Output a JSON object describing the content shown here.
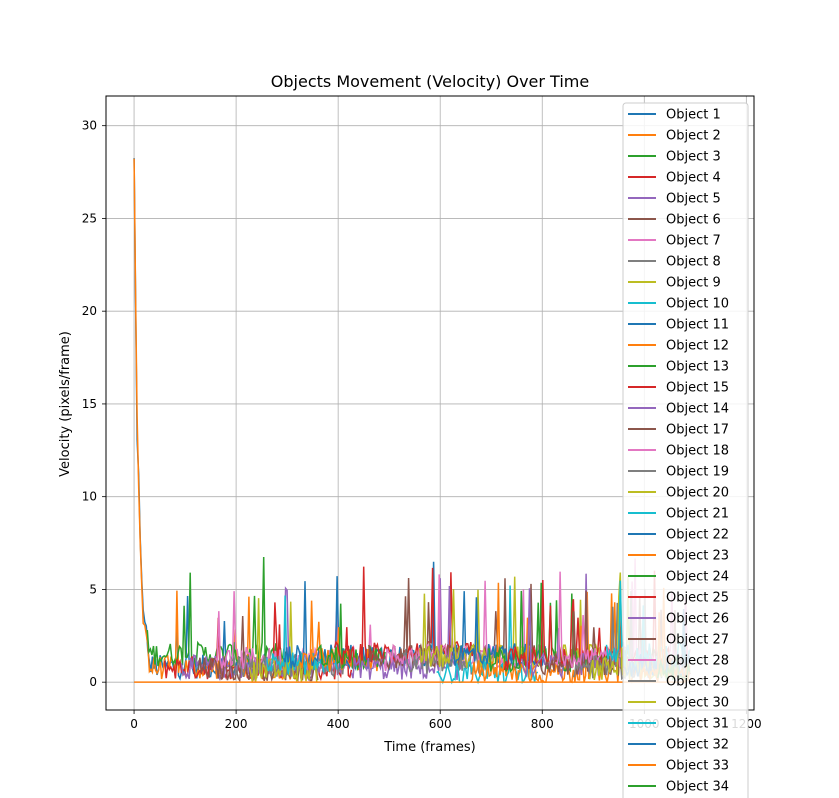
{
  "chart_data": {
    "type": "line",
    "title": "Objects Movement (Velocity) Over Time",
    "xlabel": "Time (frames)",
    "ylabel": "Velocity (pixels/frame)",
    "xlim": [
      -55,
      1215
    ],
    "ylim": [
      -1.5,
      31.6
    ],
    "xticks": [
      0,
      200,
      400,
      600,
      800,
      1000,
      1200
    ],
    "yticks": [
      0,
      5,
      10,
      15,
      20,
      25,
      30
    ],
    "grid": true,
    "legend_position": "upper-right",
    "series": [
      {
        "name": "Object 1",
        "color": "#1f77b4"
      },
      {
        "name": "Object 2",
        "color": "#ff7f0e"
      },
      {
        "name": "Object 3",
        "color": "#2ca02c"
      },
      {
        "name": "Object 4",
        "color": "#d62728"
      },
      {
        "name": "Object 5",
        "color": "#9467bd"
      },
      {
        "name": "Object 6",
        "color": "#8c564b"
      },
      {
        "name": "Object 7",
        "color": "#e377c2"
      },
      {
        "name": "Object 8",
        "color": "#7f7f7f"
      },
      {
        "name": "Object 9",
        "color": "#bcbd22"
      },
      {
        "name": "Object 10",
        "color": "#17becf"
      },
      {
        "name": "Object 11",
        "color": "#1f77b4"
      },
      {
        "name": "Object 12",
        "color": "#ff7f0e"
      },
      {
        "name": "Object 13",
        "color": "#2ca02c"
      },
      {
        "name": "Object 15",
        "color": "#d62728"
      },
      {
        "name": "Object 14",
        "color": "#9467bd"
      },
      {
        "name": "Object 17",
        "color": "#8c564b"
      },
      {
        "name": "Object 18",
        "color": "#e377c2"
      },
      {
        "name": "Object 19",
        "color": "#7f7f7f"
      },
      {
        "name": "Object 20",
        "color": "#bcbd22"
      },
      {
        "name": "Object 21",
        "color": "#17becf"
      },
      {
        "name": "Object 22",
        "color": "#1f77b4"
      },
      {
        "name": "Object 23",
        "color": "#ff7f0e"
      },
      {
        "name": "Object 24",
        "color": "#2ca02c"
      },
      {
        "name": "Object 25",
        "color": "#d62728"
      },
      {
        "name": "Object 26",
        "color": "#9467bd"
      },
      {
        "name": "Object 27",
        "color": "#8c564b"
      },
      {
        "name": "Object 28",
        "color": "#e377c2"
      },
      {
        "name": "Object 29",
        "color": "#7f7f7f"
      },
      {
        "name": "Object 30",
        "color": "#bcbd22"
      },
      {
        "name": "Object 31",
        "color": "#17becf"
      },
      {
        "name": "Object 32",
        "color": "#1f77b4"
      },
      {
        "name": "Object 33",
        "color": "#ff7f0e"
      },
      {
        "name": "Object 34",
        "color": "#2ca02c"
      }
    ]
  }
}
